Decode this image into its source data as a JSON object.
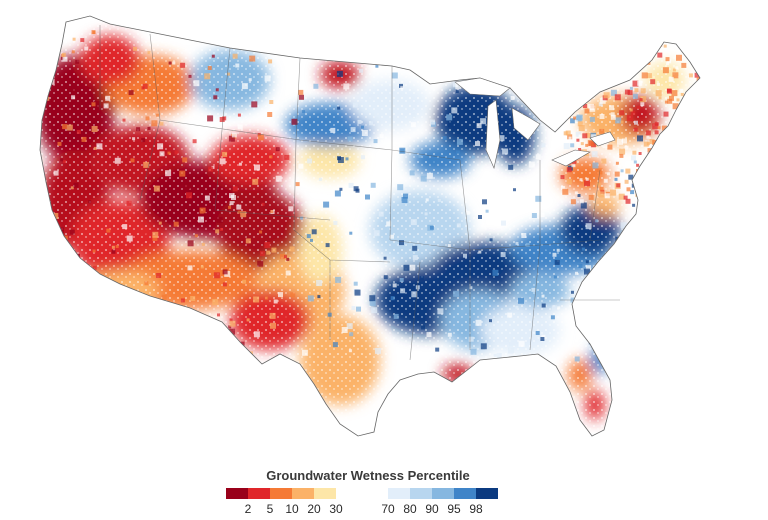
{
  "legend": {
    "title": "Groundwater Wetness Percentile",
    "dry_labels": [
      "2",
      "5",
      "10",
      "20",
      "30"
    ],
    "wet_labels": [
      "70",
      "80",
      "90",
      "95",
      "98"
    ],
    "dry_colors": [
      "#99001a",
      "#e0262a",
      "#f57a35",
      "#fbb268",
      "#fde6a8"
    ],
    "wet_colors": [
      "#e2eefa",
      "#b8d6ef",
      "#86b7e0",
      "#3f84c8",
      "#0b3a80"
    ]
  },
  "map": {
    "background_color": "#ffffff",
    "border_color": "#666666"
  }
}
